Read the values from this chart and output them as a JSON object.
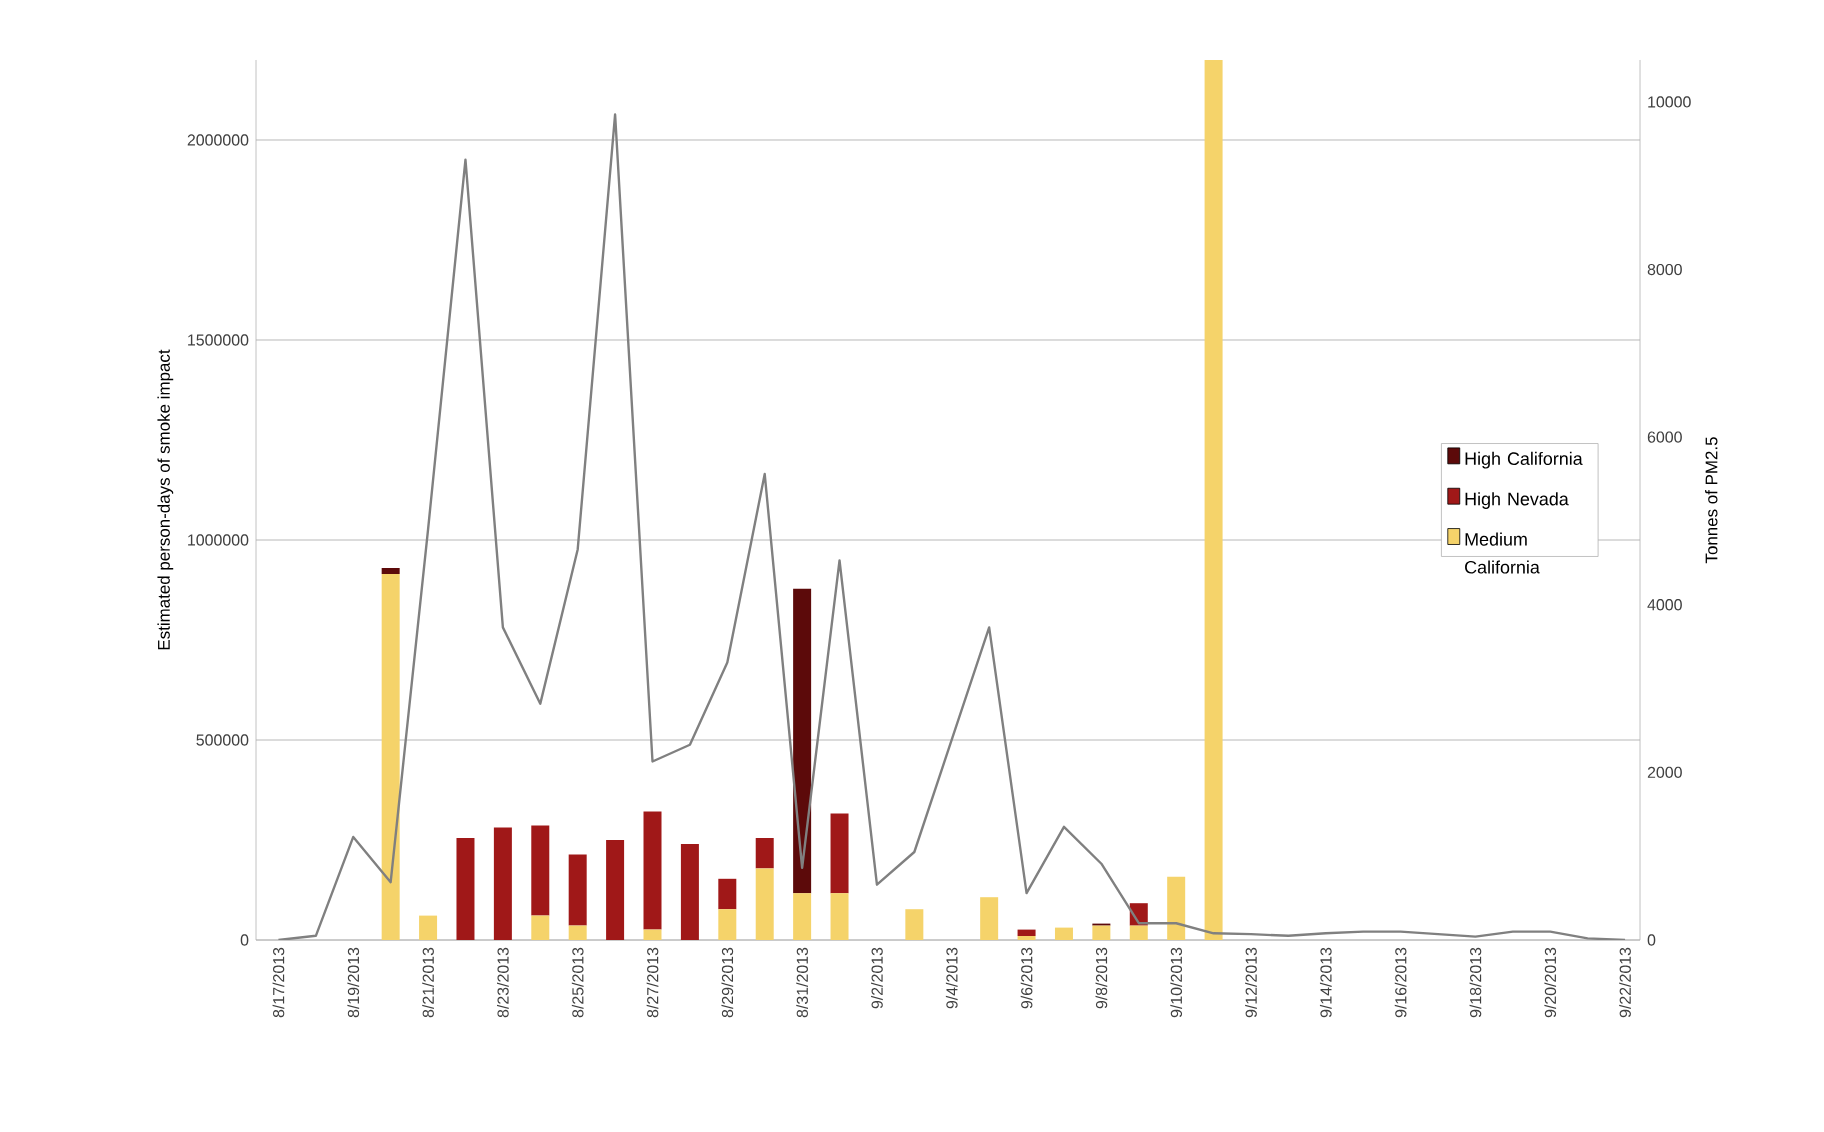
{
  "chart_data": {
    "type": "bar",
    "stacked": true,
    "ylabel": "Estimated person-days of smoke impact",
    "y2label": "Tonnes of PM2.5",
    "categories": [
      "8/17/2013",
      null,
      "8/19/2013",
      null,
      "8/21/2013",
      null,
      "8/23/2013",
      null,
      "8/25/2013",
      null,
      "8/27/2013",
      null,
      "8/29/2013",
      null,
      "8/31/2013",
      null,
      "9/2/2013",
      null,
      "9/4/2013",
      null,
      "9/6/2013",
      null,
      "9/8/2013",
      null,
      "9/10/2013",
      null,
      "9/12/2013",
      null,
      "9/14/2013",
      null,
      "9/16/2013",
      null,
      "9/18/2013",
      null,
      "9/20/2013",
      null,
      "9/22/2013"
    ],
    "series": [
      {
        "name": "Medium California",
        "color": "#f5d36a",
        "values": [
          0,
          0,
          0,
          915000,
          61000,
          0,
          0,
          61000,
          36000,
          0,
          26000,
          0,
          77000,
          179000,
          117000,
          117000,
          0,
          77000,
          0,
          107000,
          10000,
          31000,
          36000,
          36000,
          158000,
          2200000,
          0,
          0,
          0,
          0,
          0,
          0,
          0,
          0,
          0,
          0,
          0
        ]
      },
      {
        "name": "High Nevada",
        "color": "#a01818",
        "values": [
          0,
          0,
          0,
          0,
          0,
          255000,
          281000,
          225000,
          178000,
          250000,
          295000,
          240000,
          76000,
          76000,
          0,
          199000,
          0,
          0,
          0,
          0,
          16000,
          0,
          0,
          56000,
          0,
          0,
          0,
          0,
          0,
          0,
          0,
          0,
          0,
          0,
          0,
          0,
          0
        ]
      },
      {
        "name": "High California",
        "color": "#5c0a0a",
        "values": [
          0,
          0,
          0,
          15000,
          0,
          0,
          0,
          0,
          0,
          0,
          0,
          0,
          0,
          0,
          761000,
          0,
          0,
          0,
          0,
          0,
          0,
          0,
          5000,
          0,
          0,
          0,
          0,
          0,
          0,
          0,
          0,
          0,
          0,
          0,
          0,
          0,
          0
        ]
      },
      {
        "type": "line",
        "axis": "y2",
        "color": "#808080",
        "values": [
          0,
          50,
          1230,
          690,
          4900,
          9310,
          3730,
          2820,
          4660,
          9850,
          2130,
          2330,
          3310,
          5560,
          860,
          4530,
          660,
          1050,
          2390,
          3730,
          560,
          1350,
          910,
          200,
          200,
          80,
          70,
          50,
          80,
          100,
          100,
          70,
          40,
          100,
          100,
          20,
          0
        ]
      }
    ],
    "ylim": [
      0,
      2200000
    ],
    "yticks": [
      0,
      500000,
      1000000,
      1500000,
      2000000
    ],
    "y2lim": [
      0,
      10500
    ],
    "y2ticks": [
      0,
      2000,
      4000,
      6000,
      8000,
      10000
    ],
    "grid": "y",
    "legend": "right"
  }
}
